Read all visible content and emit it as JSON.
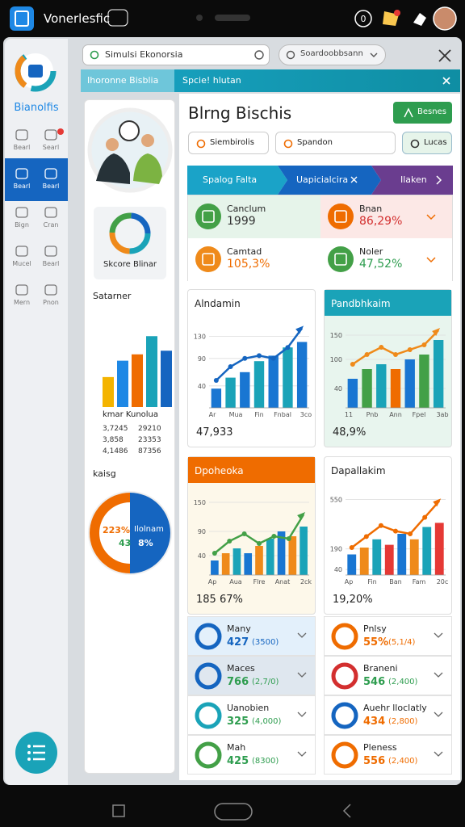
{
  "status_bar": {
    "app": "Vonerlesfic",
    "badge": "0"
  },
  "sidebar": {
    "brand": "Bianolfis",
    "rows": [
      [
        "Bearl",
        "Searl"
      ],
      [
        "Bearl",
        "Bearl"
      ],
      [
        "Bign",
        "Cran"
      ],
      [
        "Mucel",
        "Bearl"
      ],
      [
        "Mern",
        "Pnon"
      ]
    ],
    "active_row": 1
  },
  "top_bar": {
    "search": "Simulsi Ekonorsia",
    "search2": "Soardoobbsann"
  },
  "tabs": [
    "Ihoronne Bisblia",
    "Spcie! hlutan"
  ],
  "left_panel": {
    "card_label": "Skcore Blinar",
    "section1": "Satarner",
    "bars": {
      "ylim": [
        0,
        80
      ],
      "values": [
        33,
        51,
        58,
        78,
        62
      ],
      "colors": [
        "#f4b400",
        "#1e88e5",
        "#ef6c00",
        "#1aa3b8",
        "#1565c0"
      ]
    },
    "table_title": "kmar Kunolua",
    "table_rows": [
      [
        "3,7245",
        "29210"
      ],
      [
        "3,858",
        "23353"
      ],
      [
        "4,1486",
        "87356"
      ]
    ],
    "section2": "kaisg",
    "pie": {
      "left": "223%",
      "right": "Ilolnam",
      "bottom_left": "43",
      "bottom_right": "8%"
    }
  },
  "main": {
    "title": "Blrng Bischis",
    "button": "Besnes",
    "chips": [
      "Siembirolis",
      "Spandon",
      "Lucas"
    ],
    "steps": [
      "Spalog Falta",
      "Uapicialcira",
      "Ilaken"
    ],
    "kpis": [
      {
        "label": "Canclum",
        "value": "1999",
        "color": "#333333"
      },
      {
        "label": "Bnan",
        "value": "86,29%",
        "color": "#d32f2f"
      },
      {
        "label": "Camtad",
        "value": "105,3%",
        "color": "#ef6c00"
      },
      {
        "label": "Noler",
        "value": "47,52%",
        "color": "#2e9d4f"
      }
    ],
    "charts": [
      {
        "title": "Alndamin",
        "summary": "47,933",
        "ylim": [
          0,
          150
        ],
        "yticks": [
          40,
          90,
          130
        ],
        "categories": [
          "Ar",
          "Mua",
          "Fin",
          "Fnbal",
          "3co"
        ],
        "bars": [
          35,
          55,
          65,
          85,
          95,
          110,
          120
        ],
        "bar_colors": [
          "#1976d2",
          "#1aa3b8"
        ],
        "line": [
          50,
          75,
          90,
          95,
          90,
          110,
          145
        ],
        "line_color": "#1565c0"
      },
      {
        "title": "Pandbhkaim",
        "summary": "48,9%",
        "ylim": [
          0,
          170
        ],
        "yticks": [
          40,
          100,
          150
        ],
        "categories": [
          "11",
          "Pnb",
          "Ann",
          "Fpel",
          "3ab"
        ],
        "bars": [
          60,
          80,
          90,
          80,
          100,
          110,
          140
        ],
        "bar_colors": [
          "#1976d2",
          "#43a047",
          "#1aa3b8",
          "#ef6c00"
        ],
        "line": [
          90,
          110,
          125,
          110,
          120,
          130,
          160
        ],
        "line_color": "#ef8a1a"
      },
      {
        "title": "Dpoheoka",
        "summary": "185 67%",
        "ylim": [
          0,
          170
        ],
        "yticks": [
          40,
          90,
          150
        ],
        "categories": [
          "Ap",
          "Aua",
          "Flre",
          "Anat",
          "2ck"
        ],
        "bars": [
          30,
          45,
          55,
          45,
          60,
          75,
          90,
          80,
          100
        ],
        "bar_colors": [
          "#1976d2",
          "#ef8a1a",
          "#1aa3b8"
        ],
        "line": [
          45,
          70,
          85,
          65,
          80,
          75,
          125
        ],
        "line_color": "#43a047"
      },
      {
        "title": "Dapallakim",
        "summary": "19,20%",
        "ylim": [
          0,
          600
        ],
        "yticks": [
          40,
          190,
          550
        ],
        "categories": [
          "Ap",
          "Fin",
          "Ban",
          "Fam",
          "20c"
        ],
        "bars": [
          150,
          200,
          260,
          220,
          300,
          260,
          350,
          380
        ],
        "bar_colors": [
          "#1976d2",
          "#ef8a1a",
          "#1aa3b8",
          "#e53935"
        ],
        "line": [
          200,
          280,
          360,
          320,
          300,
          420,
          540
        ],
        "line_color": "#ef6c00"
      }
    ],
    "lists": [
      [
        {
          "name": "Many",
          "value": "427",
          "sub": "(3500)",
          "color": "#1565c0"
        },
        {
          "name": "Maces",
          "value": "766",
          "sub": "(2,7/0)",
          "color": "#2e9d4f"
        },
        {
          "name": "Uanobien",
          "value": "325",
          "sub": "(4,000)",
          "color": "#2e9d4f"
        },
        {
          "name": "Mah",
          "value": "425",
          "sub": "(8300)",
          "color": "#2e9d4f"
        }
      ],
      [
        {
          "name": "Pnlsy",
          "value": "55%",
          "sub": "(5,1/4)",
          "color": "#ef6c00"
        },
        {
          "name": "Braneni",
          "value": "546",
          "sub": "(2,400)",
          "color": "#2e9d4f"
        },
        {
          "name": "Auehr lloclatly",
          "value": "434",
          "sub": "(2,800)",
          "color": "#ef6c00"
        },
        {
          "name": "Pleness",
          "value": "556",
          "sub": "(2,400)",
          "color": "#ef6c00"
        }
      ]
    ]
  }
}
